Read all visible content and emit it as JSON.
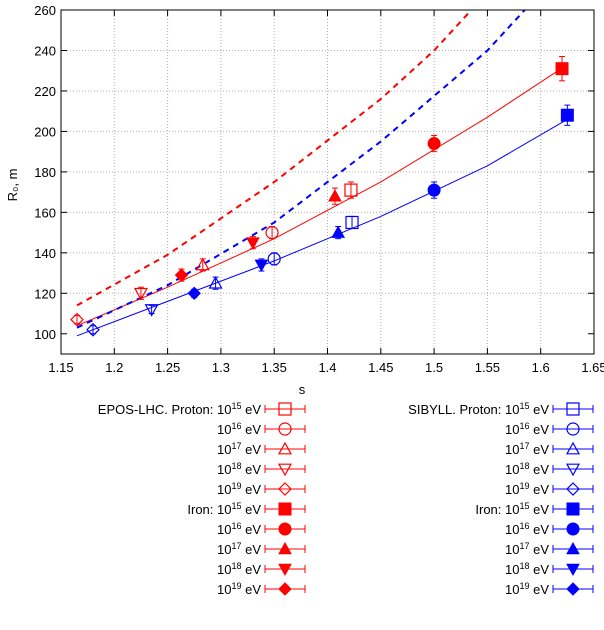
{
  "chart_data": {
    "type": "scatter",
    "xlabel": "s",
    "ylabel": "R₀, m",
    "xlim": [
      1.15,
      1.65
    ],
    "ylim": [
      90,
      260
    ],
    "xticks": [
      "1.15",
      "1.2",
      "1.25",
      "1.3",
      "1.35",
      "1.4",
      "1.45",
      "1.5",
      "1.55",
      "1.6",
      "1.65"
    ],
    "yticks": [
      "100",
      "120",
      "140",
      "160",
      "180",
      "200",
      "220",
      "240",
      "260"
    ],
    "colors": {
      "epos": "#ff0000",
      "sibyll": "#0000ff"
    },
    "series": [
      {
        "name": "EPOS-LHC. Proton: 10^15 eV",
        "model": "epos",
        "particle": "proton",
        "marker": "square-open",
        "points": [
          {
            "x": 1.422,
            "y": 171,
            "err": 4
          }
        ]
      },
      {
        "name": "10^16 eV",
        "model": "epos",
        "particle": "proton",
        "marker": "circle-open",
        "points": [
          {
            "x": 1.348,
            "y": 150,
            "err": 3
          }
        ]
      },
      {
        "name": "10^17 eV",
        "model": "epos",
        "particle": "proton",
        "marker": "triangle-up-open",
        "points": [
          {
            "x": 1.283,
            "y": 134,
            "err": 3
          }
        ]
      },
      {
        "name": "10^18 eV",
        "model": "epos",
        "particle": "proton",
        "marker": "triangle-down-open",
        "points": [
          {
            "x": 1.225,
            "y": 120,
            "err": 3
          }
        ]
      },
      {
        "name": "10^19 eV",
        "model": "epos",
        "particle": "proton",
        "marker": "diamond-open",
        "points": [
          {
            "x": 1.165,
            "y": 107,
            "err": 2
          }
        ]
      },
      {
        "name": "Iron: 10^15 eV",
        "model": "epos",
        "particle": "iron",
        "marker": "square",
        "points": [
          {
            "x": 1.62,
            "y": 231,
            "err": 6
          }
        ]
      },
      {
        "name": "10^16 eV",
        "model": "epos",
        "particle": "iron",
        "marker": "circle",
        "points": [
          {
            "x": 1.5,
            "y": 194,
            "err": 4
          }
        ]
      },
      {
        "name": "10^17 eV",
        "model": "epos",
        "particle": "iron",
        "marker": "triangle-up",
        "points": [
          {
            "x": 1.407,
            "y": 168,
            "err": 4
          }
        ]
      },
      {
        "name": "10^18 eV",
        "model": "epos",
        "particle": "iron",
        "marker": "triangle-down",
        "points": [
          {
            "x": 1.33,
            "y": 145,
            "err": 3
          }
        ]
      },
      {
        "name": "10^19 eV",
        "model": "epos",
        "particle": "iron",
        "marker": "diamond",
        "points": [
          {
            "x": 1.263,
            "y": 129,
            "err": 3
          }
        ]
      },
      {
        "name": "SIBYLL. Proton: 10^15 eV",
        "model": "sibyll",
        "particle": "proton",
        "marker": "square-open",
        "points": [
          {
            "x": 1.423,
            "y": 155,
            "err": 3
          }
        ]
      },
      {
        "name": "10^16 eV",
        "model": "sibyll",
        "particle": "proton",
        "marker": "circle-open",
        "points": [
          {
            "x": 1.35,
            "y": 137,
            "err": 3
          }
        ]
      },
      {
        "name": "10^17 eV",
        "model": "sibyll",
        "particle": "proton",
        "marker": "triangle-up-open",
        "points": [
          {
            "x": 1.295,
            "y": 125,
            "err": 3
          }
        ]
      },
      {
        "name": "10^18 eV",
        "model": "sibyll",
        "particle": "proton",
        "marker": "triangle-down-open",
        "points": [
          {
            "x": 1.235,
            "y": 112,
            "err": 2
          }
        ]
      },
      {
        "name": "10^19 eV",
        "model": "sibyll",
        "particle": "proton",
        "marker": "diamond-open",
        "points": [
          {
            "x": 1.18,
            "y": 102,
            "err": 2
          }
        ]
      },
      {
        "name": "Iron: 10^15 eV",
        "model": "sibyll",
        "particle": "iron",
        "marker": "square",
        "points": [
          {
            "x": 1.625,
            "y": 208,
            "err": 5
          }
        ]
      },
      {
        "name": "10^16 eV",
        "model": "sibyll",
        "particle": "iron",
        "marker": "circle",
        "points": [
          {
            "x": 1.5,
            "y": 171,
            "err": 4
          }
        ]
      },
      {
        "name": "10^17 eV",
        "model": "sibyll",
        "particle": "iron",
        "marker": "triangle-up",
        "points": [
          {
            "x": 1.41,
            "y": 150,
            "err": 3
          }
        ]
      },
      {
        "name": "10^18 eV",
        "model": "sibyll",
        "particle": "iron",
        "marker": "triangle-down",
        "points": [
          {
            "x": 1.338,
            "y": 134,
            "err": 3
          }
        ]
      },
      {
        "name": "10^19 eV",
        "model": "sibyll",
        "particle": "iron",
        "marker": "diamond",
        "points": [
          {
            "x": 1.275,
            "y": 120,
            "err": 2
          }
        ]
      }
    ],
    "fits": [
      {
        "model": "epos",
        "style": "solid",
        "points": [
          [
            1.165,
            104
          ],
          [
            1.25,
            123
          ],
          [
            1.35,
            147
          ],
          [
            1.45,
            175
          ],
          [
            1.55,
            207
          ],
          [
            1.625,
            233
          ]
        ]
      },
      {
        "model": "sibyll",
        "style": "solid",
        "points": [
          [
            1.165,
            99
          ],
          [
            1.25,
            116
          ],
          [
            1.35,
            136
          ],
          [
            1.45,
            158
          ],
          [
            1.55,
            183
          ],
          [
            1.625,
            206
          ]
        ]
      },
      {
        "model": "epos",
        "style": "dashed",
        "points": [
          [
            1.165,
            114
          ],
          [
            1.25,
            139
          ],
          [
            1.35,
            175
          ],
          [
            1.45,
            216
          ],
          [
            1.5,
            240
          ],
          [
            1.535,
            260
          ]
        ]
      },
      {
        "model": "sibyll",
        "style": "dashed",
        "points": [
          [
            1.165,
            103
          ],
          [
            1.25,
            124
          ],
          [
            1.35,
            155
          ],
          [
            1.45,
            195
          ],
          [
            1.55,
            240
          ],
          [
            1.585,
            260
          ]
        ]
      }
    ],
    "legend_placement": "below"
  }
}
